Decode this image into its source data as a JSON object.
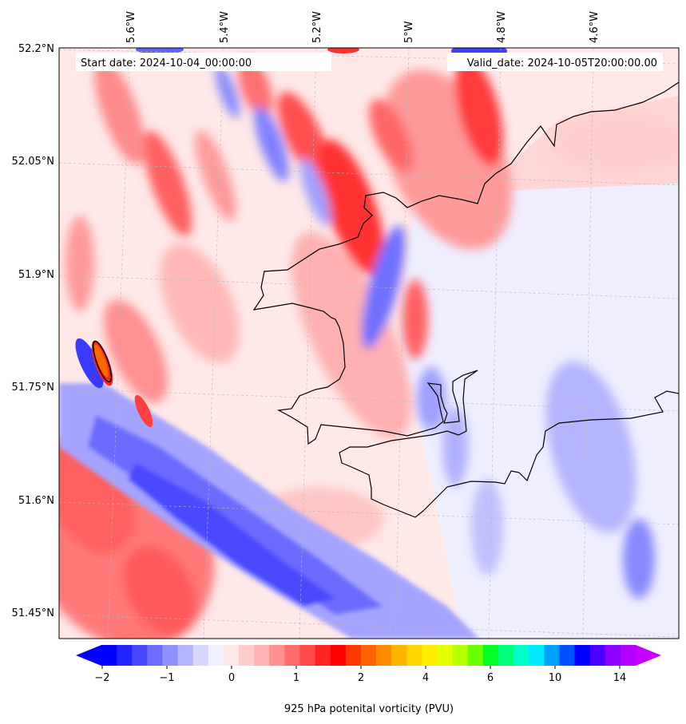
{
  "header": {
    "start_label": "Start date: 2024-10-04_00:00:00",
    "valid_label": "Valid_date: 2024-10-05T20:00:00.00"
  },
  "map": {
    "lon_labels": [
      "5.6°W",
      "5.4°W",
      "5.2°W",
      "5°W",
      "4.8°W",
      "4.6°W"
    ],
    "lat_labels": [
      "52.2°N",
      "52.05°N",
      "51.9°N",
      "51.75°N",
      "51.6°N",
      "51.45°N"
    ],
    "lon_values": [
      -5.6,
      -5.4,
      -5.2,
      -5.0,
      -4.8,
      -4.6
    ],
    "lat_values": [
      52.2,
      52.05,
      51.9,
      51.75,
      51.6,
      51.45
    ],
    "coastline_color": "#000000",
    "gridline_color": "#b8b8b8"
  },
  "colorbar": {
    "title": "925 hPa potenital vorticity (PVU)",
    "tick_labels": [
      "−2",
      "−1",
      "0",
      "1",
      "2",
      "4",
      "6",
      "10",
      "14"
    ],
    "colors": [
      "#0000ff",
      "#2424ff",
      "#4848ff",
      "#6c6cff",
      "#9090ff",
      "#b4b4ff",
      "#d8d8ff",
      "#f0f0ff",
      "#ffe6e6",
      "#ffcccc",
      "#ffb4b4",
      "#ff9090",
      "#ff6c6c",
      "#ff4848",
      "#ff2424",
      "#ff0000",
      "#ff3a00",
      "#ff6200",
      "#ff8c00",
      "#ffb400",
      "#ffd400",
      "#ffee00",
      "#e6ff00",
      "#b4ff00",
      "#6cff00",
      "#00ff24",
      "#00ff7a",
      "#00ffc8",
      "#00eaff",
      "#00a0ff",
      "#0050ff",
      "#0000ff",
      "#4a00ff",
      "#8c00ff",
      "#b400ff"
    ],
    "extend_min_color": "#0000ff",
    "extend_max_color": "#c400ff"
  }
}
